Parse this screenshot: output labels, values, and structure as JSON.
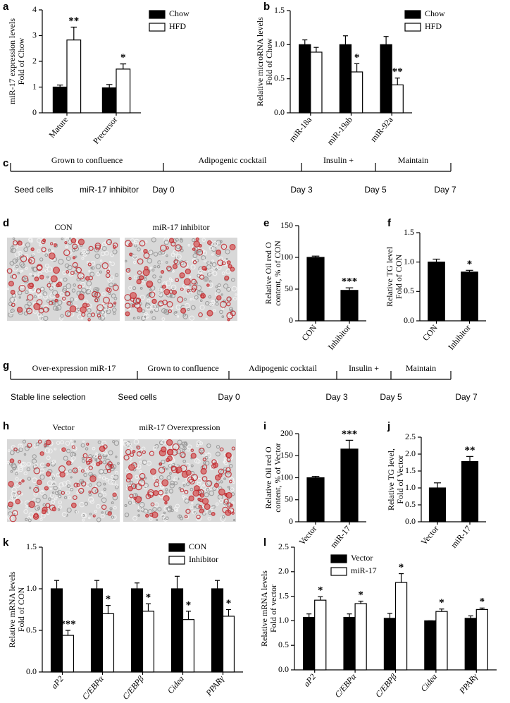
{
  "chart_data": [
    {
      "panel": "a",
      "type": "bar",
      "ylabel": [
        "miR-17 expression  levels",
        "Fold of Chow"
      ],
      "categories": [
        "Mature",
        "Precursor"
      ],
      "series": [
        {
          "name": "Chow",
          "color": "#000000",
          "values": [
            1.0,
            0.97
          ],
          "errors": [
            0.08,
            0.13
          ]
        },
        {
          "name": "HFD",
          "color": "#ffffff",
          "values": [
            2.83,
            1.7
          ],
          "errors": [
            0.5,
            0.2
          ],
          "annotations": [
            "**",
            "*"
          ]
        }
      ],
      "ylim": [
        0,
        4
      ],
      "yticks": [
        0,
        1,
        2,
        3,
        4
      ]
    },
    {
      "panel": "b",
      "type": "bar",
      "ylabel": [
        "Relative microRNA  levels",
        "Fold of Chow"
      ],
      "categories": [
        "miR-18a",
        "miR-19ab",
        "miR-92a"
      ],
      "series": [
        {
          "name": "Chow",
          "color": "#000000",
          "values": [
            1.0,
            1.0,
            1.0
          ],
          "errors": [
            0.07,
            0.13,
            0.12
          ]
        },
        {
          "name": "HFD",
          "color": "#ffffff",
          "values": [
            0.89,
            0.6,
            0.41
          ],
          "errors": [
            0.07,
            0.12,
            0.1
          ],
          "annotations": [
            null,
            "*",
            "**"
          ]
        }
      ],
      "ylim": [
        0,
        1.5
      ],
      "yticks": [
        {
          "value": 0,
          "label": "0.0"
        },
        {
          "value": 0.5,
          "label": "0.5"
        },
        {
          "value": 1,
          "label": "1.0"
        },
        {
          "value": 1.5,
          "label": "1.5"
        }
      ]
    },
    {
      "panel": "e",
      "type": "bar",
      "ylabel": [
        "Relative Oil red O",
        "content, % of CON"
      ],
      "categories": [
        "CON",
        "Inhibitor"
      ],
      "series": [
        {
          "color": "#000000",
          "values": [
            100,
            48
          ],
          "errors": [
            2,
            4
          ],
          "annotations": [
            null,
            "***"
          ]
        }
      ],
      "ylim": [
        0,
        150
      ],
      "yticks": [
        0,
        50,
        100,
        150
      ]
    },
    {
      "panel": "f",
      "type": "bar",
      "ylabel": [
        "Relative TG level",
        "Fold of CON"
      ],
      "categories": [
        "CON",
        "Inhibitor"
      ],
      "series": [
        {
          "color": "#000000",
          "values": [
            1.0,
            0.83
          ],
          "errors": [
            0.05,
            0.03
          ],
          "annotations": [
            null,
            "*"
          ]
        }
      ],
      "ylim": [
        0,
        1.5
      ],
      "yticks": [
        {
          "value": 0,
          "label": "0.0"
        },
        {
          "value": 0.5,
          "label": "0.5"
        },
        {
          "value": 1,
          "label": "1.0"
        },
        {
          "value": 1.5,
          "label": "1.5"
        }
      ]
    },
    {
      "panel": "i",
      "type": "bar",
      "ylabel": [
        "Relative Oil red O",
        "content, % of Vector"
      ],
      "categories": [
        "Vector",
        "miR-17"
      ],
      "series": [
        {
          "color": "#000000",
          "values": [
            100,
            165
          ],
          "errors": [
            3,
            20
          ],
          "annotations": [
            null,
            "***"
          ]
        }
      ],
      "ylim": [
        0,
        200
      ],
      "yticks": [
        0,
        50,
        100,
        150,
        200
      ]
    },
    {
      "panel": "j",
      "type": "bar",
      "ylabel": [
        "Relative TG level,",
        "Fold of Vector"
      ],
      "categories": [
        "Vector",
        "miR-17"
      ],
      "series": [
        {
          "color": "#000000",
          "values": [
            1.0,
            1.78
          ],
          "errors": [
            0.15,
            0.15
          ],
          "annotations": [
            null,
            "**"
          ]
        }
      ],
      "ylim": [
        0,
        2.5
      ],
      "yticks": [
        {
          "value": 0,
          "label": "0.0"
        },
        {
          "value": 0.5,
          "label": "0.5"
        },
        {
          "value": 1,
          "label": "1.0"
        },
        {
          "value": 1.5,
          "label": "1.5"
        },
        {
          "value": 2,
          "label": "2.0"
        },
        {
          "value": 2.5,
          "label": "2.5"
        }
      ]
    },
    {
      "panel": "k",
      "type": "bar",
      "ylabel": [
        "Relative mRNA levels",
        "Fold of CON"
      ],
      "categories": [
        "aP2",
        "C/EBPα",
        "C/EBPβ",
        "Cidea",
        "PPARγ"
      ],
      "italic_categories": true,
      "series": [
        {
          "name": "CON",
          "color": "#000000",
          "values": [
            1.0,
            1.0,
            1.0,
            1.0,
            1.0
          ],
          "errors": [
            0.1,
            0.1,
            0.07,
            0.15,
            0.1
          ]
        },
        {
          "name": "Inhibitor",
          "color": "#ffffff",
          "values": [
            0.44,
            0.7,
            0.73,
            0.63,
            0.67
          ],
          "errors": [
            0.06,
            0.1,
            0.09,
            0.1,
            0.08
          ],
          "annotations": [
            "***",
            "*",
            "*",
            "*",
            "*"
          ]
        }
      ],
      "ylim": [
        0,
        1.5
      ],
      "yticks": [
        {
          "value": 0,
          "label": "0.0"
        },
        {
          "value": 0.5,
          "label": "0.5"
        },
        {
          "value": 1,
          "label": "1.0"
        },
        {
          "value": 1.5,
          "label": "1.5"
        }
      ]
    },
    {
      "panel": "l",
      "type": "bar",
      "ylabel": [
        "Relative mRNA levels",
        "Fold of vector"
      ],
      "categories": [
        "aP2",
        "C/EBPα",
        "C/EBPβ",
        "Cidea",
        "PPARγ"
      ],
      "italic_categories": true,
      "series": [
        {
          "name": "Vector",
          "color": "#000000",
          "values": [
            1.07,
            1.07,
            1.05,
            1.0,
            1.05
          ],
          "errors": [
            0.07,
            0.07,
            0.1,
            0,
            0.05
          ]
        },
        {
          "name": "miR-17",
          "color": "#ffffff",
          "values": [
            1.42,
            1.35,
            1.78,
            1.19,
            1.23
          ],
          "errors": [
            0.07,
            0.05,
            0.18,
            0.05,
            0.03
          ],
          "annotations": [
            "*",
            "*",
            "*",
            "*",
            "*"
          ]
        }
      ],
      "ylim": [
        0,
        2.5
      ],
      "yticks": [
        {
          "value": 0,
          "label": "0.0"
        },
        {
          "value": 0.5,
          "label": "0.5"
        },
        {
          "value": 1,
          "label": "1.0"
        },
        {
          "value": 1.5,
          "label": "1.5"
        },
        {
          "value": 2,
          "label": "2.0"
        },
        {
          "value": 2.5,
          "label": "2.5"
        }
      ]
    }
  ],
  "timelines": [
    {
      "panel": "c",
      "stages": [
        "Grown to confluence",
        "Adipogenic cocktail",
        "Insulin +",
        "Maintain"
      ],
      "labels": [
        "Seed  cells",
        "miR-17 inhibitor",
        "Day 0",
        "Day 3",
        "Day 5",
        "Day 7"
      ]
    },
    {
      "panel": "g",
      "stages": [
        "Over-expression miR-17",
        "Grown to confluence",
        "Adipogenic cocktail",
        "Insulin +",
        "Maintain"
      ],
      "labels": [
        "Stable line selection",
        "Seed  cells",
        "Day 0",
        "Day 3",
        "Day 5",
        "Day 7"
      ]
    }
  ],
  "images": [
    {
      "panel": "d",
      "captions": [
        "CON",
        "miR-17 inhibitor"
      ]
    },
    {
      "panel": "h",
      "captions": [
        "Vector",
        "miR-17 Overexpression"
      ]
    }
  ]
}
